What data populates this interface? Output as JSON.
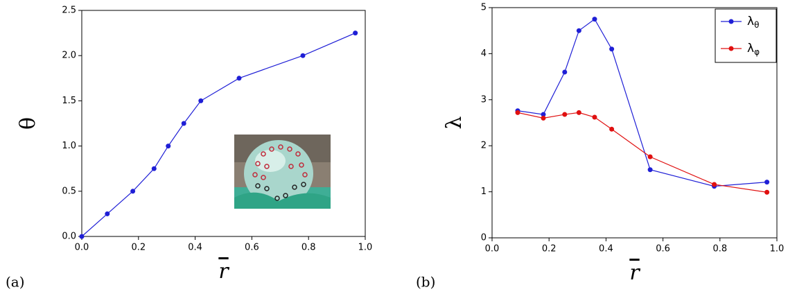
{
  "chart_data": [
    {
      "type": "line",
      "panel_label": "(a)",
      "x_label": "r",
      "y_label": "θ",
      "x": [
        0,
        0.09,
        0.18,
        0.255,
        0.305,
        0.36,
        0.42,
        0.555,
        0.78,
        0.965
      ],
      "series": [
        {
          "name": null,
          "color": "#1f1fd6",
          "values": [
            0,
            0.25,
            0.5,
            0.75,
            1.0,
            1.25,
            1.5,
            1.75,
            2.0,
            2.25
          ]
        }
      ],
      "xlim": [
        0,
        1.0
      ],
      "ylim": [
        0,
        2.5
      ],
      "xticks": [
        {
          "value": 0,
          "label": "0.0"
        },
        {
          "value": 0.2,
          "label": "0.2"
        },
        {
          "value": 0.4,
          "label": "0.4"
        },
        {
          "value": 0.6,
          "label": "0.6"
        },
        {
          "value": 0.8,
          "label": "0.8"
        },
        {
          "value": 1.0,
          "label": "1.0"
        }
      ],
      "yticks": [
        {
          "value": 0,
          "label": "0.0"
        },
        {
          "value": 0.5,
          "label": "0.5"
        },
        {
          "value": 1.0,
          "label": "1.0"
        },
        {
          "value": 1.5,
          "label": "1.5"
        },
        {
          "value": 2.0,
          "label": "2.0"
        },
        {
          "value": 2.5,
          "label": "2.5"
        }
      ],
      "legend": false
    },
    {
      "type": "line",
      "panel_label": "(b)",
      "x_label": "r",
      "y_label": "λ",
      "x": [
        0.09,
        0.18,
        0.255,
        0.305,
        0.36,
        0.42,
        0.555,
        0.78,
        0.965
      ],
      "series": [
        {
          "name": "λθ",
          "color": "#1f1fd6",
          "values": [
            2.76,
            2.68,
            3.6,
            4.5,
            4.75,
            4.1,
            1.48,
            1.12,
            1.21
          ]
        },
        {
          "name": "λφ",
          "color": "#e01010",
          "values": [
            2.72,
            2.6,
            2.68,
            2.72,
            2.62,
            2.36,
            1.76,
            1.16,
            0.99
          ]
        }
      ],
      "xlim": [
        0,
        1.0
      ],
      "ylim": [
        0,
        5
      ],
      "xticks": [
        {
          "value": 0,
          "label": "0.0"
        },
        {
          "value": 0.2,
          "label": "0.2"
        },
        {
          "value": 0.4,
          "label": "0.4"
        },
        {
          "value": 0.6,
          "label": "0.6"
        },
        {
          "value": 0.8,
          "label": "0.8"
        },
        {
          "value": 1.0,
          "label": "1.0"
        }
      ],
      "yticks": [
        0,
        1,
        2,
        3,
        4,
        5
      ],
      "legend": "upper right"
    }
  ]
}
